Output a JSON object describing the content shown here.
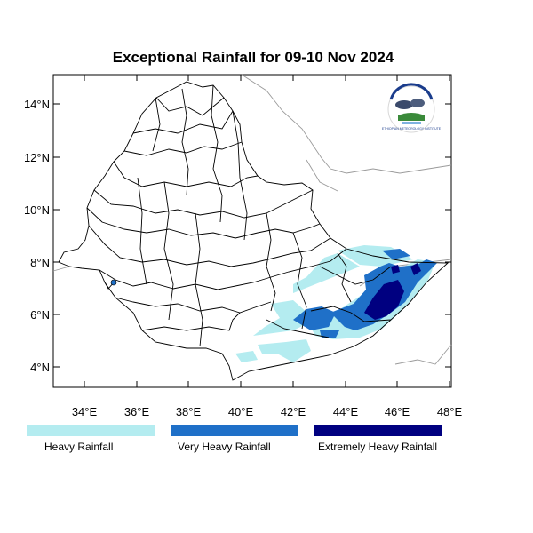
{
  "title": "Exceptional Rainfall for 09-10 Nov 2024",
  "axes": {
    "y_ticks": [
      "14°N",
      "12°N",
      "10°N",
      "8°N",
      "6°N",
      "4°N"
    ],
    "x_ticks": [
      "34°E",
      "36°E",
      "38°E",
      "40°E",
      "42°E",
      "44°E",
      "46°E",
      "48°E"
    ]
  },
  "legend": [
    {
      "label": "Heavy Rainfall",
      "color": "#b4ecf0"
    },
    {
      "label": "Very Heavy Rainfall",
      "color": "#1f70c8"
    },
    {
      "label": "Extremely Heavy Rainfall",
      "color": "#000080"
    }
  ],
  "logo": {
    "text": "ETHIOPIAN METEOROLOGY INSTITUTE"
  }
}
